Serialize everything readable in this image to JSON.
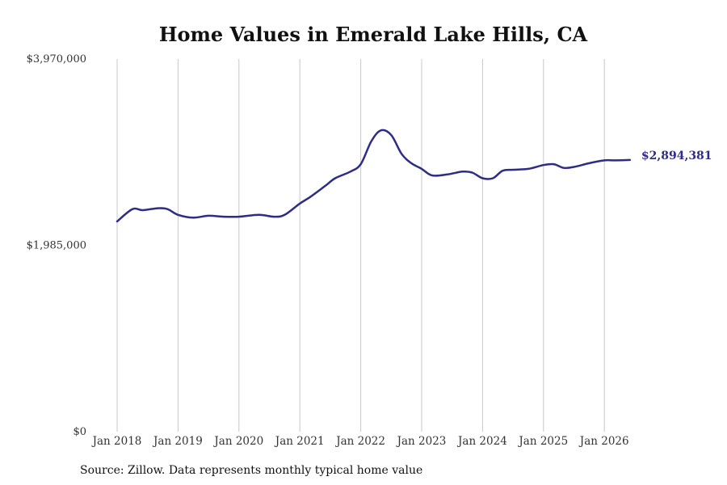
{
  "chart_data": {
    "type": "line",
    "title": "Home Values in Emerald Lake Hills, CA",
    "source": "Source: Zillow. Data represents monthly typical home value",
    "ylim": [
      0,
      3970000
    ],
    "y_ticks": [
      "$3,970,000",
      "$1,985,000",
      "$0"
    ],
    "y_tick_values": [
      3970000,
      1985000,
      0
    ],
    "x_ticks": [
      "Jan 2018",
      "Jan 2019",
      "Jan 2020",
      "Jan 2021",
      "Jan 2022",
      "Jan 2023",
      "Jan 2024",
      "Jan 2025",
      "Jan 2026"
    ],
    "x_tick_values": [
      2018,
      2019,
      2020,
      2021,
      2022,
      2023,
      2024,
      2025,
      2026
    ],
    "grid": "vertical",
    "line_color": "#2e2d86",
    "end_label": "$2,894,381",
    "series": [
      {
        "x": [
          2018.0,
          2018.25,
          2018.42,
          2018.67,
          2018.83,
          2019.0,
          2019.25,
          2019.5,
          2019.75,
          2020.0,
          2020.33,
          2020.58,
          2020.75,
          2021.0,
          2021.17,
          2021.42,
          2021.58,
          2021.83,
          2022.0,
          2022.17,
          2022.33,
          2022.5,
          2022.67,
          2022.83,
          2023.0,
          2023.17,
          2023.42,
          2023.67,
          2023.83,
          2024.0,
          2024.17,
          2024.33,
          2024.5,
          2024.75,
          2025.0,
          2025.17,
          2025.33,
          2025.5,
          2025.75,
          2026.0,
          2026.17,
          2026.42
        ],
        "y": [
          2240000,
          2370000,
          2360000,
          2380000,
          2370000,
          2310000,
          2280000,
          2300000,
          2290000,
          2290000,
          2310000,
          2290000,
          2310000,
          2430000,
          2500000,
          2620000,
          2700000,
          2770000,
          2850000,
          3090000,
          3210000,
          3160000,
          2960000,
          2860000,
          2800000,
          2730000,
          2740000,
          2770000,
          2760000,
          2700000,
          2700000,
          2780000,
          2790000,
          2800000,
          2840000,
          2850000,
          2810000,
          2820000,
          2860000,
          2890000,
          2890000,
          2894381
        ]
      }
    ]
  }
}
